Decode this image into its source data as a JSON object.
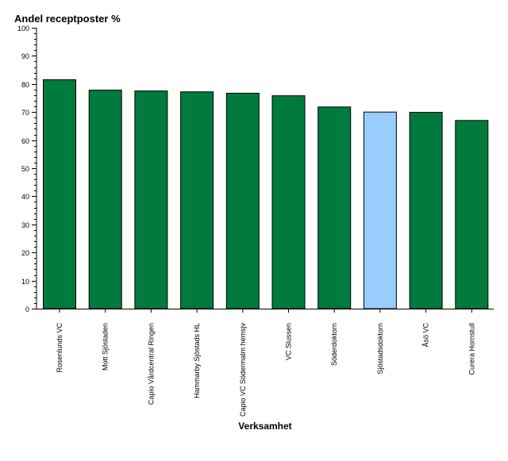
{
  "chart_data": {
    "type": "bar",
    "title": "Andel receptposter %",
    "xlabel": "Verksamhet",
    "ylabel": "",
    "ylim": [
      0,
      100
    ],
    "yticks": [
      0,
      10,
      20,
      30,
      40,
      50,
      60,
      70,
      80,
      90,
      100
    ],
    "grid": false,
    "legend": "none",
    "categories": [
      "Rosenlunds VC",
      "Mott Sjöstaden",
      "Capio Vårdcentral Ringen",
      "Hammarby Sjöstads HL",
      "Capio VC Södermalm hemsjv",
      "VC Slussen",
      "Söderdoktorn",
      "Sjöstadsdoktorn",
      "Åsö VC",
      "Curera Hornstull"
    ],
    "values": [
      81.5,
      77.8,
      77.5,
      77.2,
      76.7,
      75.8,
      71.8,
      70.0,
      69.9,
      67.0
    ],
    "colors": {
      "default": "#007a3d",
      "highlight": "#99ccff",
      "highlight_category": "Sjöstadsdoktorn",
      "axis": "#000000"
    }
  }
}
